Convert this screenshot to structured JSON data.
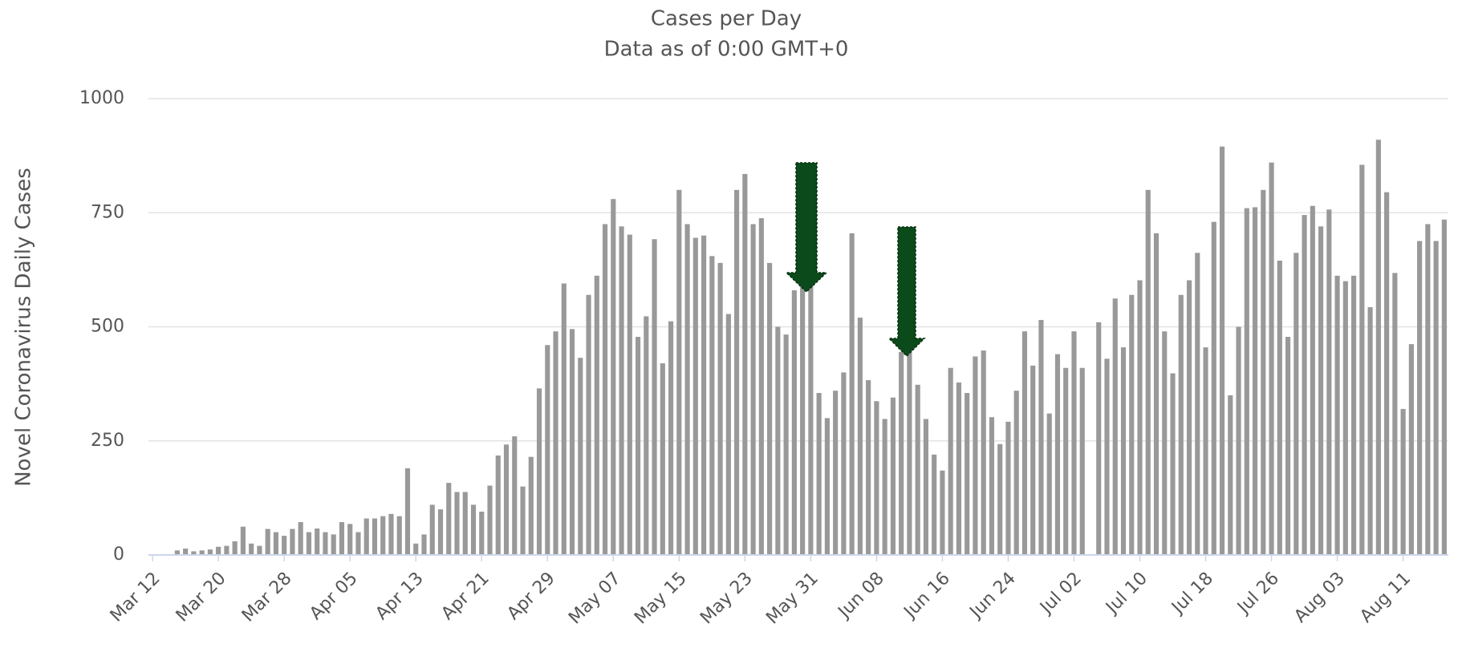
{
  "chart_data": {
    "type": "bar",
    "title": "Cases per Day",
    "subtitle": "Data as of 0:00 GMT+0",
    "y_label": "Novel Coronavirus Daily Cases",
    "color": "#999999",
    "grid": true,
    "ylim": [
      0,
      1000
    ],
    "yticks": [
      0,
      250,
      500,
      750,
      1000
    ],
    "categories": [
      "Mar 12",
      null,
      null,
      null,
      null,
      null,
      null,
      null,
      "Mar 20",
      null,
      null,
      null,
      null,
      null,
      null,
      null,
      "Mar 28",
      null,
      null,
      null,
      null,
      null,
      null,
      null,
      "Apr 05",
      null,
      null,
      null,
      null,
      null,
      null,
      null,
      "Apr 13",
      null,
      null,
      null,
      null,
      null,
      null,
      null,
      "Apr 21",
      null,
      null,
      null,
      null,
      null,
      null,
      null,
      "Apr 29",
      null,
      null,
      null,
      null,
      null,
      null,
      null,
      "May 07",
      null,
      null,
      null,
      null,
      null,
      null,
      null,
      "May 15",
      null,
      null,
      null,
      null,
      null,
      null,
      null,
      "May 23",
      null,
      null,
      null,
      null,
      null,
      null,
      null,
      "May 31",
      null,
      null,
      null,
      null,
      null,
      null,
      null,
      "Jun 08",
      null,
      null,
      null,
      null,
      null,
      null,
      null,
      "Jun 16",
      null,
      null,
      null,
      null,
      null,
      null,
      null,
      "Jun 24",
      null,
      null,
      null,
      null,
      null,
      null,
      null,
      "Jul 02",
      null,
      null,
      null,
      null,
      null,
      null,
      null,
      "Jul 10",
      null,
      null,
      null,
      null,
      null,
      null,
      null,
      "Jul 18",
      null,
      null,
      null,
      null,
      null,
      null,
      null,
      "Jul 26",
      null,
      null,
      null,
      null,
      null,
      null,
      null,
      "Aug 03",
      null,
      null,
      null,
      null,
      null,
      null,
      null,
      "Aug 11",
      null,
      null,
      null,
      null,
      null
    ],
    "values": [
      0,
      0,
      0,
      10,
      14,
      8,
      10,
      12,
      18,
      20,
      30,
      62,
      25,
      20,
      57,
      50,
      42,
      57,
      72,
      50,
      58,
      50,
      45,
      72,
      68,
      50,
      80,
      80,
      85,
      90,
      85,
      190,
      25,
      45,
      110,
      100,
      158,
      138,
      138,
      110,
      95,
      152,
      218,
      242,
      260,
      150,
      215,
      365,
      460,
      490,
      595,
      495,
      432,
      570,
      612,
      725,
      780,
      720,
      702,
      478,
      523,
      692,
      420,
      512,
      800,
      725,
      695,
      700,
      655,
      640,
      528,
      800,
      835,
      725,
      738,
      640,
      500,
      483,
      580,
      590,
      600,
      355,
      300,
      360,
      400,
      705,
      520,
      383,
      337,
      298,
      345,
      445,
      460,
      373,
      298,
      220,
      185,
      410,
      378,
      355,
      435,
      448,
      302,
      243,
      292,
      360,
      490,
      415,
      515,
      310,
      440,
      410,
      490,
      410,
      0,
      510,
      430,
      562,
      455,
      570,
      602,
      800,
      705,
      490,
      398,
      570,
      602,
      662,
      455,
      730,
      895,
      350,
      500,
      760,
      762,
      800,
      860,
      645,
      478,
      662,
      745,
      765,
      720,
      757,
      612,
      600,
      612,
      855,
      543,
      910,
      795,
      618,
      320,
      462,
      688,
      725,
      688,
      735
    ]
  }
}
